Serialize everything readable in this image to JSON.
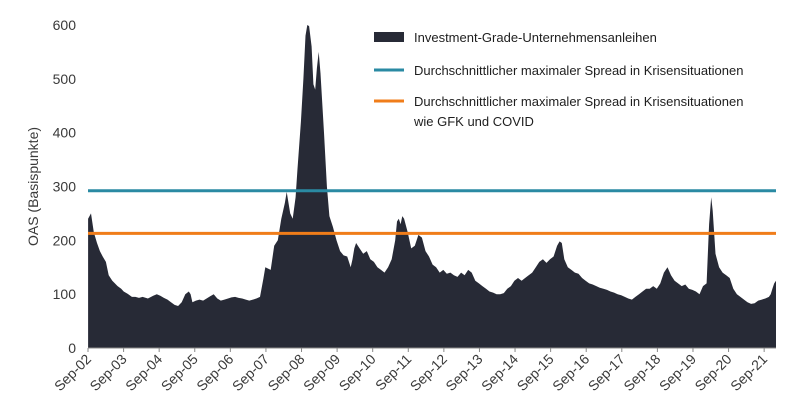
{
  "chart_data": {
    "type": "area",
    "ylabel": "OAS (Basispunkte)",
    "ylim": [
      0,
      600
    ],
    "yticks": [
      0,
      100,
      200,
      300,
      400,
      500,
      600
    ],
    "xlim": [
      2002.667,
      2022.0
    ],
    "xticks": [
      {
        "label": "Sep-02",
        "x": 2002.667
      },
      {
        "label": "Sep-03",
        "x": 2003.667
      },
      {
        "label": "Sep-04",
        "x": 2004.667
      },
      {
        "label": "Sep-05",
        "x": 2005.667
      },
      {
        "label": "Sep-06",
        "x": 2006.667
      },
      {
        "label": "Sep-07",
        "x": 2007.667
      },
      {
        "label": "Sep-08",
        "x": 2008.667
      },
      {
        "label": "Sep-09",
        "x": 2009.667
      },
      {
        "label": "Sep-10",
        "x": 2010.667
      },
      {
        "label": "Sep-11",
        "x": 2011.667
      },
      {
        "label": "Sep-12",
        "x": 2012.667
      },
      {
        "label": "Sep-13",
        "x": 2013.667
      },
      {
        "label": "Sep-14",
        "x": 2014.667
      },
      {
        "label": "Sep-15",
        "x": 2015.667
      },
      {
        "label": "Sep-16",
        "x": 2016.667
      },
      {
        "label": "Sep-17",
        "x": 2017.667
      },
      {
        "label": "Sep-18",
        "x": 2018.667
      },
      {
        "label": "Sep-19",
        "x": 2019.667
      },
      {
        "label": "Sep-20",
        "x": 2020.667
      },
      {
        "label": "Sep-21",
        "x": 2021.667
      }
    ],
    "legend_position": "top-right",
    "series": [
      {
        "name": "Investment-Grade-Unternehmensanleihen",
        "kind": "area",
        "color": "#272a36",
        "points": [
          [
            2002.67,
            240
          ],
          [
            2002.75,
            250
          ],
          [
            2002.83,
            215
          ],
          [
            2002.92,
            195
          ],
          [
            2003.0,
            180
          ],
          [
            2003.08,
            170
          ],
          [
            2003.17,
            160
          ],
          [
            2003.25,
            135
          ],
          [
            2003.35,
            125
          ],
          [
            2003.5,
            115
          ],
          [
            2003.6,
            110
          ],
          [
            2003.67,
            105
          ],
          [
            2003.8,
            100
          ],
          [
            2003.9,
            95
          ],
          [
            2004.0,
            95
          ],
          [
            2004.1,
            93
          ],
          [
            2004.2,
            95
          ],
          [
            2004.35,
            92
          ],
          [
            2004.5,
            97
          ],
          [
            2004.6,
            100
          ],
          [
            2004.7,
            97
          ],
          [
            2004.8,
            93
          ],
          [
            2004.9,
            90
          ],
          [
            2005.0,
            85
          ],
          [
            2005.1,
            80
          ],
          [
            2005.2,
            78
          ],
          [
            2005.3,
            85
          ],
          [
            2005.4,
            100
          ],
          [
            2005.5,
            105
          ],
          [
            2005.55,
            100
          ],
          [
            2005.6,
            85
          ],
          [
            2005.7,
            88
          ],
          [
            2005.8,
            90
          ],
          [
            2005.9,
            88
          ],
          [
            2006.0,
            92
          ],
          [
            2006.1,
            96
          ],
          [
            2006.2,
            100
          ],
          [
            2006.3,
            92
          ],
          [
            2006.4,
            88
          ],
          [
            2006.5,
            90
          ],
          [
            2006.6,
            92
          ],
          [
            2006.7,
            94
          ],
          [
            2006.8,
            95
          ],
          [
            2006.9,
            93
          ],
          [
            2007.0,
            92
          ],
          [
            2007.1,
            90
          ],
          [
            2007.2,
            88
          ],
          [
            2007.3,
            90
          ],
          [
            2007.4,
            92
          ],
          [
            2007.5,
            95
          ],
          [
            2007.6,
            130
          ],
          [
            2007.65,
            150
          ],
          [
            2007.8,
            145
          ],
          [
            2007.9,
            190
          ],
          [
            2008.0,
            200
          ],
          [
            2008.1,
            240
          ],
          [
            2008.2,
            270
          ],
          [
            2008.25,
            290
          ],
          [
            2008.35,
            250
          ],
          [
            2008.42,
            240
          ],
          [
            2008.5,
            280
          ],
          [
            2008.55,
            330
          ],
          [
            2008.65,
            420
          ],
          [
            2008.72,
            500
          ],
          [
            2008.78,
            580
          ],
          [
            2008.83,
            600
          ],
          [
            2008.88,
            598
          ],
          [
            2008.95,
            560
          ],
          [
            2009.0,
            490
          ],
          [
            2009.05,
            480
          ],
          [
            2009.1,
            520
          ],
          [
            2009.15,
            550
          ],
          [
            2009.2,
            510
          ],
          [
            2009.3,
            400
          ],
          [
            2009.38,
            300
          ],
          [
            2009.45,
            245
          ],
          [
            2009.55,
            225
          ],
          [
            2009.65,
            200
          ],
          [
            2009.75,
            180
          ],
          [
            2009.85,
            172
          ],
          [
            2009.95,
            170
          ],
          [
            2010.05,
            150
          ],
          [
            2010.1,
            165
          ],
          [
            2010.15,
            185
          ],
          [
            2010.2,
            195
          ],
          [
            2010.3,
            185
          ],
          [
            2010.4,
            175
          ],
          [
            2010.5,
            180
          ],
          [
            2010.6,
            165
          ],
          [
            2010.7,
            160
          ],
          [
            2010.8,
            150
          ],
          [
            2010.9,
            145
          ],
          [
            2011.0,
            140
          ],
          [
            2011.1,
            150
          ],
          [
            2011.2,
            165
          ],
          [
            2011.3,
            200
          ],
          [
            2011.35,
            235
          ],
          [
            2011.4,
            240
          ],
          [
            2011.45,
            230
          ],
          [
            2011.5,
            245
          ],
          [
            2011.55,
            240
          ],
          [
            2011.65,
            215
          ],
          [
            2011.75,
            185
          ],
          [
            2011.85,
            190
          ],
          [
            2011.95,
            210
          ],
          [
            2012.05,
            205
          ],
          [
            2012.15,
            180
          ],
          [
            2012.25,
            170
          ],
          [
            2012.35,
            155
          ],
          [
            2012.45,
            150
          ],
          [
            2012.55,
            140
          ],
          [
            2012.65,
            145
          ],
          [
            2012.75,
            138
          ],
          [
            2012.85,
            140
          ],
          [
            2012.95,
            135
          ],
          [
            2013.05,
            132
          ],
          [
            2013.15,
            140
          ],
          [
            2013.25,
            135
          ],
          [
            2013.35,
            145
          ],
          [
            2013.45,
            140
          ],
          [
            2013.55,
            125
          ],
          [
            2013.65,
            120
          ],
          [
            2013.75,
            115
          ],
          [
            2013.85,
            110
          ],
          [
            2013.95,
            105
          ],
          [
            2014.05,
            103
          ],
          [
            2014.15,
            100
          ],
          [
            2014.25,
            100
          ],
          [
            2014.35,
            102
          ],
          [
            2014.45,
            110
          ],
          [
            2014.55,
            115
          ],
          [
            2014.65,
            125
          ],
          [
            2014.75,
            130
          ],
          [
            2014.85,
            125
          ],
          [
            2014.95,
            130
          ],
          [
            2015.05,
            135
          ],
          [
            2015.15,
            140
          ],
          [
            2015.25,
            150
          ],
          [
            2015.35,
            160
          ],
          [
            2015.45,
            165
          ],
          [
            2015.55,
            158
          ],
          [
            2015.65,
            165
          ],
          [
            2015.75,
            170
          ],
          [
            2015.85,
            190
          ],
          [
            2015.92,
            198
          ],
          [
            2015.98,
            195
          ],
          [
            2016.05,
            165
          ],
          [
            2016.15,
            150
          ],
          [
            2016.25,
            145
          ],
          [
            2016.35,
            140
          ],
          [
            2016.45,
            138
          ],
          [
            2016.55,
            130
          ],
          [
            2016.65,
            125
          ],
          [
            2016.75,
            120
          ],
          [
            2016.85,
            118
          ],
          [
            2016.95,
            115
          ],
          [
            2017.05,
            112
          ],
          [
            2017.15,
            110
          ],
          [
            2017.25,
            108
          ],
          [
            2017.35,
            105
          ],
          [
            2017.45,
            103
          ],
          [
            2017.55,
            100
          ],
          [
            2017.65,
            98
          ],
          [
            2017.75,
            95
          ],
          [
            2017.85,
            92
          ],
          [
            2017.95,
            90
          ],
          [
            2018.05,
            95
          ],
          [
            2018.15,
            100
          ],
          [
            2018.25,
            105
          ],
          [
            2018.35,
            110
          ],
          [
            2018.45,
            110
          ],
          [
            2018.55,
            115
          ],
          [
            2018.65,
            110
          ],
          [
            2018.75,
            120
          ],
          [
            2018.85,
            140
          ],
          [
            2018.95,
            150
          ],
          [
            2019.05,
            135
          ],
          [
            2019.15,
            125
          ],
          [
            2019.25,
            120
          ],
          [
            2019.35,
            115
          ],
          [
            2019.45,
            118
          ],
          [
            2019.55,
            110
          ],
          [
            2019.65,
            108
          ],
          [
            2019.75,
            105
          ],
          [
            2019.85,
            100
          ],
          [
            2019.95,
            115
          ],
          [
            2020.05,
            120
          ],
          [
            2020.12,
            230
          ],
          [
            2020.18,
            280
          ],
          [
            2020.22,
            255
          ],
          [
            2020.3,
            175
          ],
          [
            2020.4,
            150
          ],
          [
            2020.5,
            140
          ],
          [
            2020.6,
            135
          ],
          [
            2020.7,
            130
          ],
          [
            2020.8,
            110
          ],
          [
            2020.9,
            100
          ],
          [
            2021.0,
            95
          ],
          [
            2021.1,
            90
          ],
          [
            2021.2,
            85
          ],
          [
            2021.3,
            82
          ],
          [
            2021.4,
            83
          ],
          [
            2021.5,
            88
          ],
          [
            2021.6,
            90
          ],
          [
            2021.7,
            92
          ],
          [
            2021.8,
            95
          ],
          [
            2021.85,
            100
          ],
          [
            2021.9,
            110
          ],
          [
            2021.95,
            120
          ],
          [
            2022.0,
            125
          ],
          [
            2022.1,
            140
          ],
          [
            2022.15,
            150
          ],
          [
            2022.2,
            145
          ],
          [
            2022.25,
            140
          ],
          [
            2022.35,
            140
          ]
        ]
      },
      {
        "name": "Durchschnittlicher maximaler Spread in Krisensituationen",
        "kind": "line",
        "color": "#2a8aa3",
        "value": 292
      },
      {
        "name_lines": [
          "Durchschnittlicher maximaler Spread in Krisensituationen",
          "wie GFK und COVID"
        ],
        "kind": "line",
        "color": "#f07d1a",
        "value": 213
      }
    ]
  }
}
